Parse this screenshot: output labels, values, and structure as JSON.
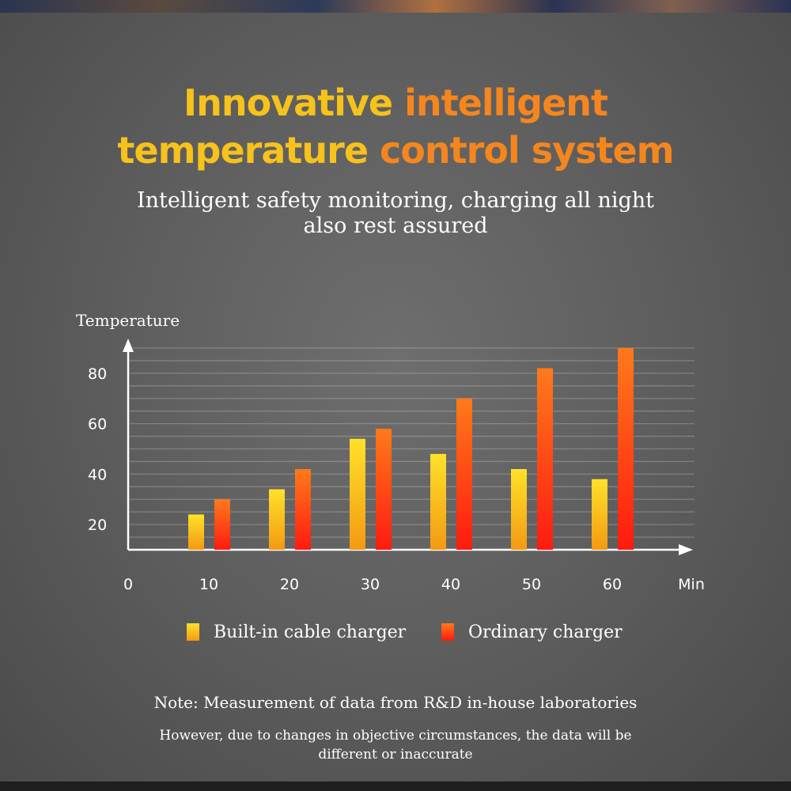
{
  "colors": {
    "title_yellow": "#f6c21b",
    "title_orange": "#f5861e",
    "builtin_top": "#ffe12a",
    "builtin_bottom": "#f39a12",
    "ordinary_top": "#ff7a1a",
    "ordinary_bottom": "#ff1a10"
  },
  "header": {
    "title_line1_a": "Innovative ",
    "title_line1_b": "intelligent",
    "title_line2_a": "temperature ",
    "title_line2_b": "control system",
    "subtitle": "Intelligent safety monitoring, charging all night also rest assured"
  },
  "chart_data": {
    "type": "bar",
    "ylabel": "Temperature",
    "xlabel": "Min",
    "categories": [
      "10",
      "20",
      "30",
      "40",
      "50",
      "60"
    ],
    "x_ticks": [
      "0",
      "10",
      "20",
      "30",
      "40",
      "50",
      "60"
    ],
    "y_ticks": [
      20,
      40,
      60,
      80
    ],
    "ylim": [
      10,
      90
    ],
    "grid": true,
    "legend_position": "bottom",
    "series": [
      {
        "name": "Built-in cable charger",
        "values": [
          24,
          34,
          54,
          48,
          42,
          38
        ]
      },
      {
        "name": "Ordinary charger",
        "values": [
          30,
          42,
          58,
          70,
          82,
          90
        ]
      }
    ]
  },
  "notes": {
    "note": "Note: Measurement of data from R&D in-house laboratories",
    "disclaimer": "However, due to changes in objective circumstances, the data will be different or inaccurate"
  }
}
